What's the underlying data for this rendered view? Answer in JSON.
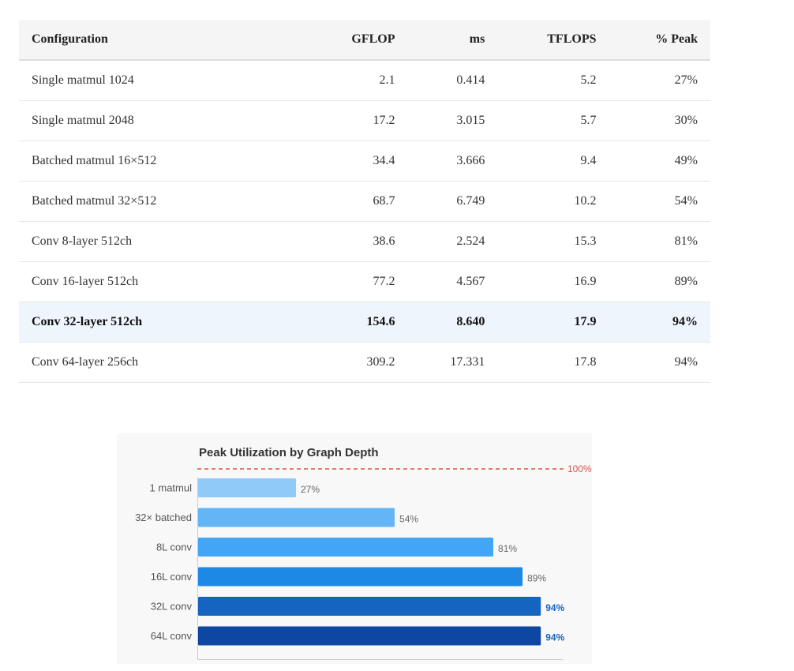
{
  "table": {
    "headers": [
      "Configuration",
      "GFLOP",
      "ms",
      "TFLOPS",
      "% Peak"
    ],
    "rows": [
      {
        "config": "Single matmul 1024",
        "gflop": "2.1",
        "ms": "0.414",
        "tflops": "5.2",
        "peak": "27%",
        "highlight": false
      },
      {
        "config": "Single matmul 2048",
        "gflop": "17.2",
        "ms": "3.015",
        "tflops": "5.7",
        "peak": "30%",
        "highlight": false
      },
      {
        "config": "Batched matmul 16×512",
        "gflop": "34.4",
        "ms": "3.666",
        "tflops": "9.4",
        "peak": "49%",
        "highlight": false
      },
      {
        "config": "Batched matmul 32×512",
        "gflop": "68.7",
        "ms": "6.749",
        "tflops": "10.2",
        "peak": "54%",
        "highlight": false
      },
      {
        "config": "Conv 8-layer 512ch",
        "gflop": "38.6",
        "ms": "2.524",
        "tflops": "15.3",
        "peak": "81%",
        "highlight": false
      },
      {
        "config": "Conv 16-layer 512ch",
        "gflop": "77.2",
        "ms": "4.567",
        "tflops": "16.9",
        "peak": "89%",
        "highlight": false
      },
      {
        "config": "Conv 32-layer 512ch",
        "gflop": "154.6",
        "ms": "8.640",
        "tflops": "17.9",
        "peak": "94%",
        "highlight": true
      },
      {
        "config": "Conv 64-layer 256ch",
        "gflop": "309.2",
        "ms": "17.331",
        "tflops": "17.8",
        "peak": "94%",
        "highlight": false
      }
    ]
  },
  "chart_data": {
    "type": "bar",
    "orientation": "horizontal",
    "title": "Peak Utilization by Graph Depth",
    "categories": [
      "1 matmul",
      "32× batched",
      "8L conv",
      "16L conv",
      "32L conv",
      "64L conv"
    ],
    "values": [
      27,
      54,
      81,
      89,
      94,
      94
    ],
    "value_labels": [
      "27%",
      "54%",
      "81%",
      "89%",
      "94%",
      "94%"
    ],
    "xlim": [
      0,
      100
    ],
    "reference_line": {
      "value": 100,
      "label": "100%",
      "color": "#d9534f"
    },
    "grid": false,
    "legend": "none",
    "bar_colors": [
      "#90caf9",
      "#64b5f6",
      "#42a5f5",
      "#1e88e5",
      "#1565c0",
      "#0d47a1"
    ],
    "emphasized_labels": [
      false,
      false,
      false,
      false,
      true,
      true
    ],
    "label_colors": {
      "normal": "#666666",
      "emphasized": "#1565c0"
    }
  }
}
